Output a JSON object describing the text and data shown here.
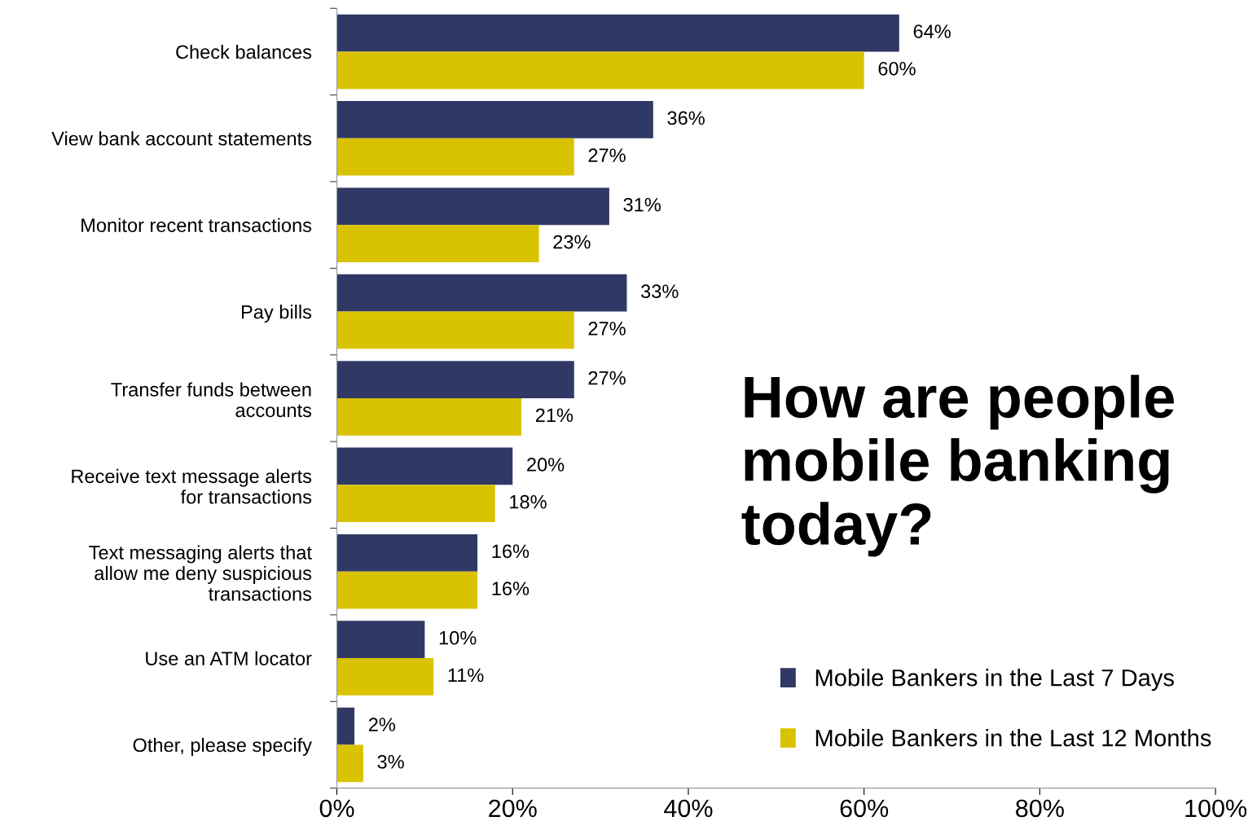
{
  "chart_data": {
    "type": "bar",
    "orientation": "horizontal",
    "title": "How are people mobile banking today?",
    "categories": [
      "Check balances",
      "View bank account statements",
      "Monitor recent transactions",
      "Pay bills",
      "Transfer funds between\naccounts",
      "Receive text message alerts\nfor transactions",
      "Text messaging alerts that\nallow me deny suspicious\ntransactions",
      "Use an ATM locator",
      "Other, please specify"
    ],
    "series": [
      {
        "name": "Mobile Bankers in the Last 7 Days",
        "color": "#303966",
        "values": [
          64,
          36,
          31,
          33,
          27,
          20,
          16,
          10,
          2
        ],
        "value_labels": [
          "64%",
          "36%",
          "31%",
          "33%",
          "27%",
          "20%",
          "16%",
          "10%",
          "2%"
        ]
      },
      {
        "name": "Mobile Bankers in the Last 12 Months",
        "color": "#d9c300",
        "values": [
          60,
          27,
          23,
          27,
          21,
          18,
          16,
          11,
          3
        ],
        "value_labels": [
          "60%",
          "27%",
          "23%",
          "27%",
          "21%",
          "18%",
          "16%",
          "11%",
          "3%"
        ]
      }
    ],
    "xlim": [
      0,
      100
    ],
    "xticks": [
      {
        "value": 0,
        "label": "0%"
      },
      {
        "value": 20,
        "label": "20%"
      },
      {
        "value": 40,
        "label": "40%"
      },
      {
        "value": 60,
        "label": "60%"
      },
      {
        "value": 80,
        "label": "80%"
      },
      {
        "value": 100,
        "label": "100%"
      }
    ],
    "grid": false,
    "legend": "bottom right"
  }
}
